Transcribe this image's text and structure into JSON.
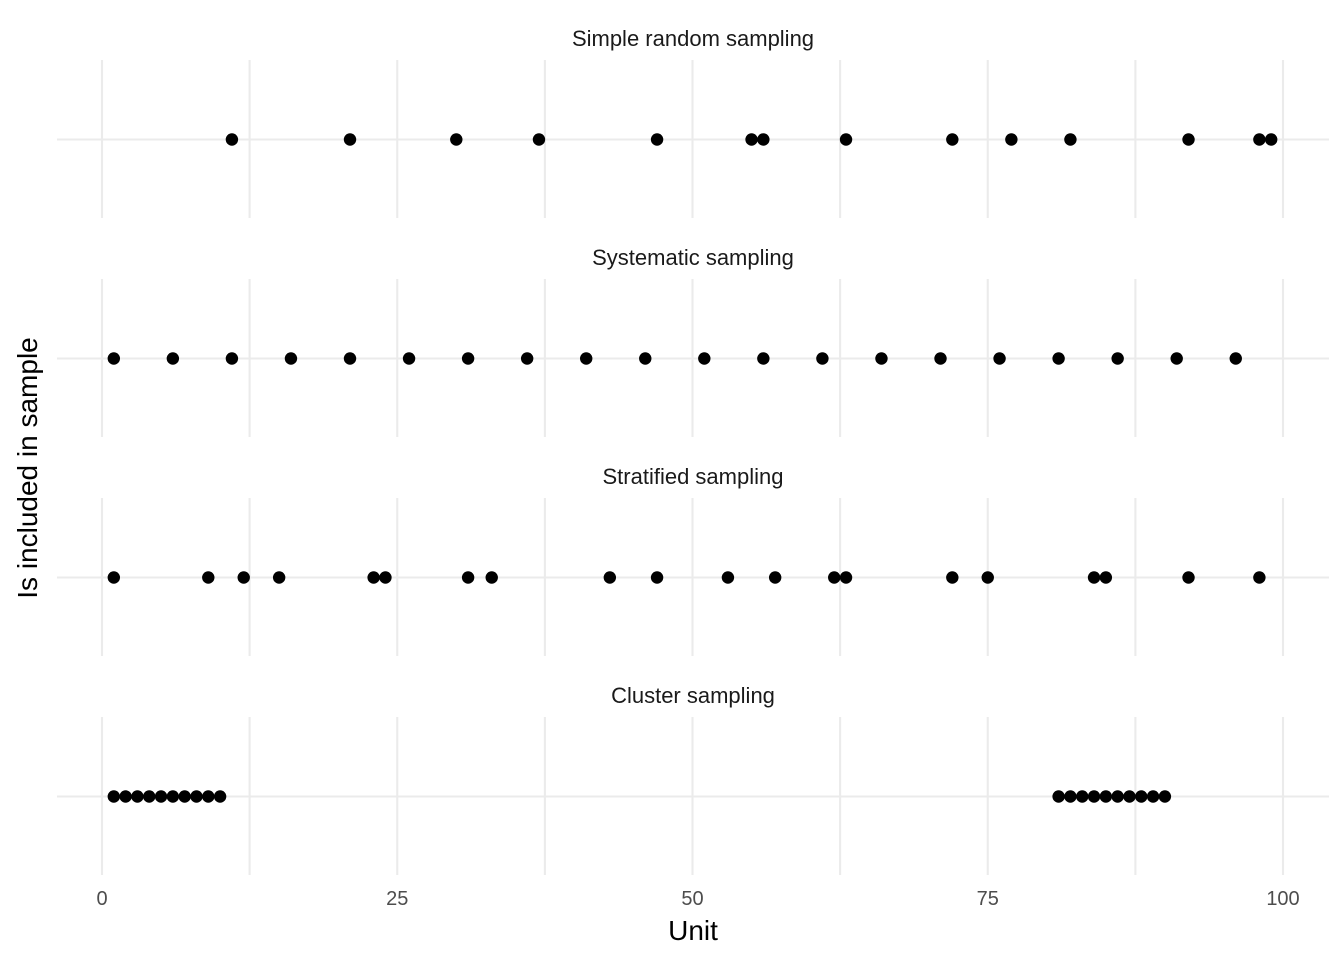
{
  "chart_data": {
    "type": "scatter",
    "xlabel": "Unit",
    "ylabel": "Is included in sample",
    "xlim": [
      -2,
      104
    ],
    "x_ticks": [
      0,
      25,
      50,
      75,
      100
    ],
    "x_tick_labels": [
      "0",
      "25",
      "50",
      "75",
      "100"
    ],
    "grid": true,
    "facets": [
      {
        "name": "Simple random sampling",
        "x": [
          11,
          21,
          30,
          37,
          47,
          55,
          56,
          63,
          72,
          77,
          82,
          92,
          98,
          99
        ]
      },
      {
        "name": "Systematic sampling",
        "x": [
          1,
          6,
          11,
          16,
          21,
          26,
          31,
          36,
          41,
          46,
          51,
          56,
          61,
          66,
          71,
          76,
          81,
          86,
          91,
          96
        ]
      },
      {
        "name": "Stratified sampling",
        "x": [
          1,
          9,
          12,
          15,
          23,
          24,
          31,
          33,
          43,
          47,
          53,
          57,
          62,
          63,
          72,
          75,
          84,
          85,
          92,
          98
        ]
      },
      {
        "name": "Cluster sampling",
        "x": [
          1,
          2,
          3,
          4,
          5,
          6,
          7,
          8,
          9,
          10,
          81,
          82,
          83,
          84,
          85,
          86,
          87,
          88,
          89,
          90
        ]
      }
    ]
  }
}
